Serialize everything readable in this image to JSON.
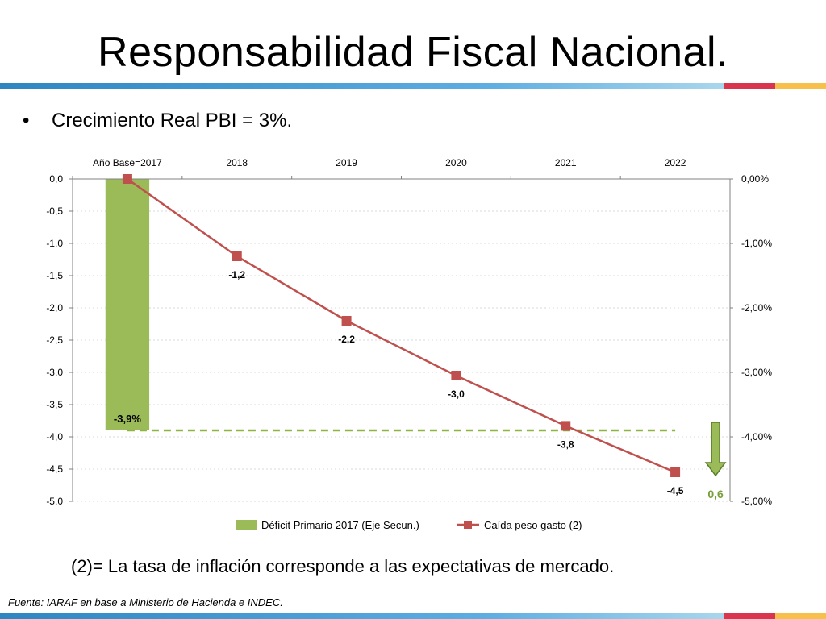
{
  "slide": {
    "title": "Responsabilidad Fiscal Nacional.",
    "bullet_symbol": "•",
    "bullet_text": "Crecimiento Real PBI = 3%.",
    "footnote": "(2)= La tasa de inflación corresponde a las expectativas de mercado.",
    "source": "Fuente: IARAF en base a  Ministerio de Hacienda e INDEC."
  },
  "colors": {
    "band_blue_dark": "#2e86c1",
    "band_blue_light": "#8ecae6",
    "band_red": "#d9354f",
    "band_yellow": "#f6c04a",
    "bar_green": "#9bbb59",
    "line_red": "#c0504d",
    "dashed_green": "#8db53f",
    "arrow_green": "#77a03a",
    "axis_grey": "#808080",
    "grid_grey": "#d9d9d9"
  },
  "chart_data": {
    "type": "bar+line",
    "categories": [
      "Año Base=2017",
      "2018",
      "2019",
      "2020",
      "2021",
      "2022"
    ],
    "left_axis": {
      "ylim": [
        -5.0,
        0.0
      ],
      "ticks": [
        "0,0",
        "-0,5",
        "-1,0",
        "-1,5",
        "-2,0",
        "-2,5",
        "-3,0",
        "-3,5",
        "-4,0",
        "-4,5",
        "-5,0"
      ],
      "tick_values": [
        0,
        -0.5,
        -1,
        -1.5,
        -2,
        -2.5,
        -3,
        -3.5,
        -4,
        -4.5,
        -5
      ]
    },
    "right_axis": {
      "ylim": [
        -5.0,
        0.0
      ],
      "ticks": [
        "0,00%",
        "-1,00%",
        "-2,00%",
        "-3,00%",
        "-4,00%",
        "-5,00%"
      ],
      "tick_values": [
        0,
        -1,
        -2,
        -3,
        -4,
        -5
      ]
    },
    "series": [
      {
        "name": "Déficit Primario 2017 (Eje Secun.)",
        "type": "bar",
        "axis": "right",
        "values": [
          -3.9,
          null,
          null,
          null,
          null,
          null
        ],
        "data_labels": [
          "-3,9%",
          "",
          "",
          "",
          "",
          ""
        ]
      },
      {
        "name": "Caída peso gasto (2)",
        "type": "line",
        "axis": "left",
        "values": [
          0.0,
          -1.2,
          -2.2,
          -3.05,
          -3.83,
          -4.55
        ],
        "data_labels": [
          "",
          "-1,2",
          "-2,2",
          "-3,0",
          "-3,8",
          "-4,5"
        ]
      }
    ],
    "reference_line": {
      "value": -3.9,
      "from": 0,
      "to": 5
    },
    "arrow_annotation": {
      "category_index": 5,
      "from": -3.85,
      "to": -4.55,
      "label": "0,6"
    },
    "grid": true,
    "legend": "bottom"
  }
}
